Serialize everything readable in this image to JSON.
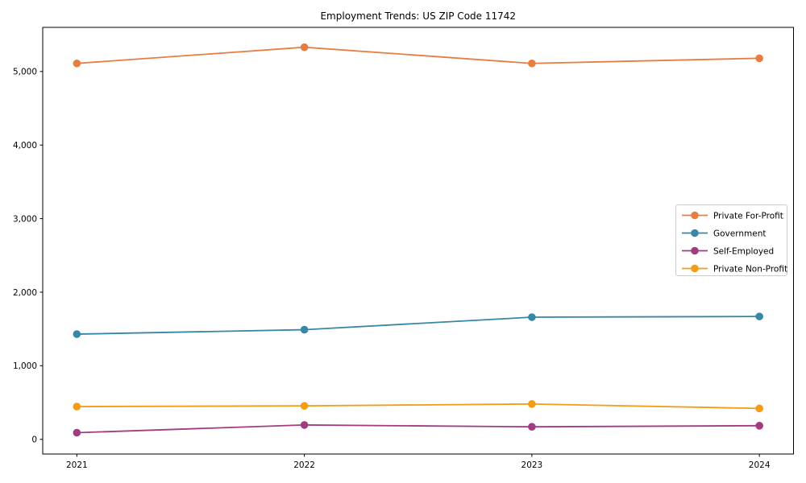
{
  "figure": {
    "title": "Employment Trends: US ZIP Code 11742",
    "background": "#ffffff"
  },
  "chart_data": {
    "type": "line",
    "title": "Employment Trends: US ZIP Code 11742",
    "x": [
      2021,
      2022,
      2023,
      2024
    ],
    "x_tick_labels": [
      "2021",
      "2022",
      "2023",
      "2024"
    ],
    "series": [
      {
        "name": "Private For-Profit",
        "color": "#E67D41",
        "values": [
          5110,
          5330,
          5110,
          5180
        ]
      },
      {
        "name": "Government",
        "color": "#3787A8",
        "values": [
          1430,
          1490,
          1660,
          1670
        ]
      },
      {
        "name": "Self-Employed",
        "color": "#A23C80",
        "values": [
          90,
          195,
          170,
          185
        ]
      },
      {
        "name": "Private Non-Profit",
        "color": "#F49C12",
        "values": [
          445,
          455,
          480,
          420
        ]
      }
    ],
    "xlabel": "",
    "ylabel": "",
    "xlim": [
      2020.85,
      2024.15
    ],
    "ylim": [
      -200,
      5600
    ],
    "yticks": [
      0,
      1000,
      2000,
      3000,
      4000,
      5000
    ],
    "ytick_labels": [
      "0",
      "1,000",
      "2,000",
      "3,000",
      "4,000",
      "5,000"
    ],
    "grid": false,
    "legend": {
      "position": "center-right",
      "entries": [
        "Private For-Profit",
        "Government",
        "Self-Employed",
        "Private Non-Profit"
      ]
    },
    "axis_color": "#000000",
    "legend_border_color": "#cccccc"
  }
}
